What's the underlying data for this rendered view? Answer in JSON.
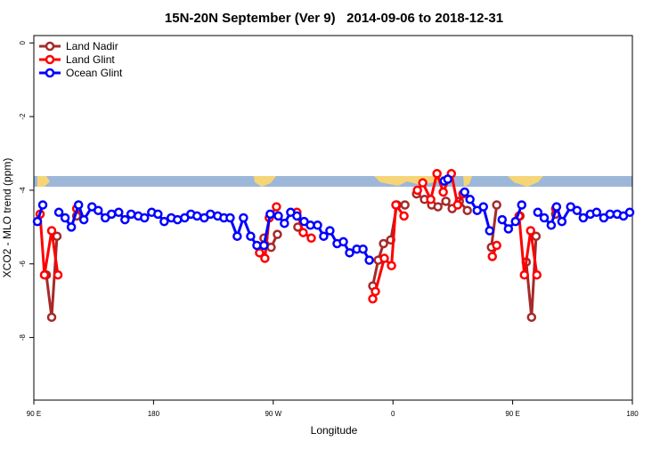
{
  "chart_data": {
    "type": "line",
    "title": "15N-20N September (Ver 9)   2014-09-06 to 2018-12-31",
    "x_label": "Longitude",
    "y_label": "XCO2 - MLO trend (ppm)",
    "xlim": [
      90,
      540
    ],
    "xticks": [
      {
        "value": 90,
        "label": "90 E"
      },
      180,
      {
        "value": 270,
        "label": "90 W"
      },
      {
        "value": 360,
        "label": "0"
      },
      {
        "value": 450,
        "label": "90 E"
      },
      {
        "value": 540,
        "label": "180"
      }
    ],
    "ylim": [
      -9.7,
      0.2
    ],
    "yticks": [
      0,
      -2,
      -4,
      -6,
      -8
    ],
    "legend": "top-left",
    "series": [
      {
        "name": "Land Nadir",
        "color": "#a52a2a",
        "x": [
          99.4,
          103.4,
          107.4,
          null,
          122.2,
          null,
          263,
          268.4,
          273.1,
          null,
          288.5,
          null,
          344.8,
          348.9,
          352.9,
          358.3,
          363,
          369,
          null,
          377.7,
          383.7,
          389.1,
          393.8,
          399.8,
          404.5,
          409.9,
          415.9,
          null,
          434,
          438,
          null,
          455.5,
          null,
          460.2,
          464.2,
          467.6,
          null,
          482.3
        ],
        "values": [
          -6.3,
          -7.45,
          -5.25,
          null,
          -4.7,
          null,
          -5.3,
          -5.55,
          -5.2,
          null,
          -5.0,
          null,
          -6.6,
          -5.9,
          -5.45,
          -5.35,
          -4.4,
          -4.4,
          null,
          -4.1,
          -4.25,
          -4.4,
          -4.45,
          -4.3,
          -4.5,
          -4.3,
          -4.55,
          null,
          -5.55,
          -4.4,
          null,
          -4.7,
          null,
          -5.95,
          -7.45,
          -5.25,
          null,
          -4.65
        ]
      },
      {
        "name": "Land Glint",
        "color": "#ff0000",
        "x": [
          94.7,
          98,
          103.4,
          108.1,
          null,
          122.2,
          null,
          259.7,
          263.7,
          267,
          272.4,
          null,
          287.8,
          292.5,
          298.6,
          null,
          344.8,
          346.8,
          353.5,
          358.9,
          362.2,
          368.3,
          null,
          378.4,
          382.4,
          388.4,
          393.1,
          397.8,
          403.9,
          408.6,
          412.6,
          null,
          434.7,
          438,
          null,
          454.8,
          458.8,
          463.5,
          468.2,
          null,
          482.3
        ],
        "values": [
          -4.65,
          -6.3,
          -5.1,
          -6.3,
          null,
          -4.5,
          null,
          -5.7,
          -5.85,
          -4.75,
          -4.45,
          null,
          -4.6,
          -5.15,
          -5.3,
          null,
          -6.95,
          -6.75,
          -5.85,
          -6.05,
          -4.4,
          -4.7,
          null,
          -4.0,
          -3.8,
          -4.25,
          -3.55,
          -4.05,
          -3.55,
          -4.4,
          -4.1,
          null,
          -5.8,
          -5.5,
          null,
          -4.7,
          -6.3,
          -5.1,
          -6.3,
          null,
          -4.5
        ]
      },
      {
        "name": "Ocean Glint",
        "color": "#0000ff",
        "x": [
          92.7,
          96.7,
          null,
          108.8,
          113.5,
          118.2,
          123.6,
          127.6,
          133.7,
          138.4,
          143.7,
          148.4,
          153.8,
          158.5,
          163.1,
          168.5,
          173.2,
          178.6,
          183.3,
          188,
          193.3,
          198,
          203.4,
          208.1,
          212.7,
          218.1,
          222.8,
          228.2,
          232.9,
          237.6,
          242.9,
          247.6,
          253,
          257.7,
          263,
          267.7,
          273.8,
          278.4,
          283.1,
          287.8,
          293.2,
          297.9,
          303.3,
          307.9,
          312.6,
          318,
          322.7,
          327.4,
          332.8,
          337.5,
          342.2,
          null,
          398.5,
          401.2,
          null,
          413.9,
          417.9,
          423.3,
          428,
          432.7,
          null,
          442.1,
          446.8,
          452.1,
          456.8,
          null,
          468.9,
          473.7,
          479,
          483,
          487,
          493.6,
          498.4,
          503.1,
          508.4,
          513.1,
          518.5,
          523.2,
          528.6,
          533.3,
          538
        ],
        "values": [
          -4.85,
          -4.4,
          null,
          -4.6,
          -4.75,
          -5.0,
          -4.4,
          -4.8,
          -4.45,
          -4.55,
          -4.75,
          -4.65,
          -4.6,
          -4.8,
          -4.65,
          -4.7,
          -4.75,
          -4.6,
          -4.65,
          -4.85,
          -4.75,
          -4.8,
          -4.75,
          -4.65,
          -4.7,
          -4.75,
          -4.65,
          -4.7,
          -4.75,
          -4.75,
          -5.25,
          -4.75,
          -5.25,
          -5.5,
          -5.5,
          -4.65,
          -4.7,
          -4.9,
          -4.6,
          -4.7,
          -4.85,
          -4.95,
          -4.95,
          -5.25,
          -5.1,
          -5.45,
          -5.4,
          -5.7,
          -5.6,
          -5.6,
          -5.9,
          null,
          -3.75,
          -3.7,
          null,
          -4.05,
          -4.25,
          -4.55,
          -4.45,
          -5.1,
          null,
          -4.8,
          -5.05,
          -4.85,
          -4.4,
          null,
          -4.6,
          -4.75,
          -4.95,
          -4.45,
          -4.85,
          -4.45,
          -4.55,
          -4.75,
          -4.65,
          -4.6,
          -4.75,
          -4.65,
          -4.65,
          -4.7,
          -4.6
        ]
      }
    ]
  }
}
